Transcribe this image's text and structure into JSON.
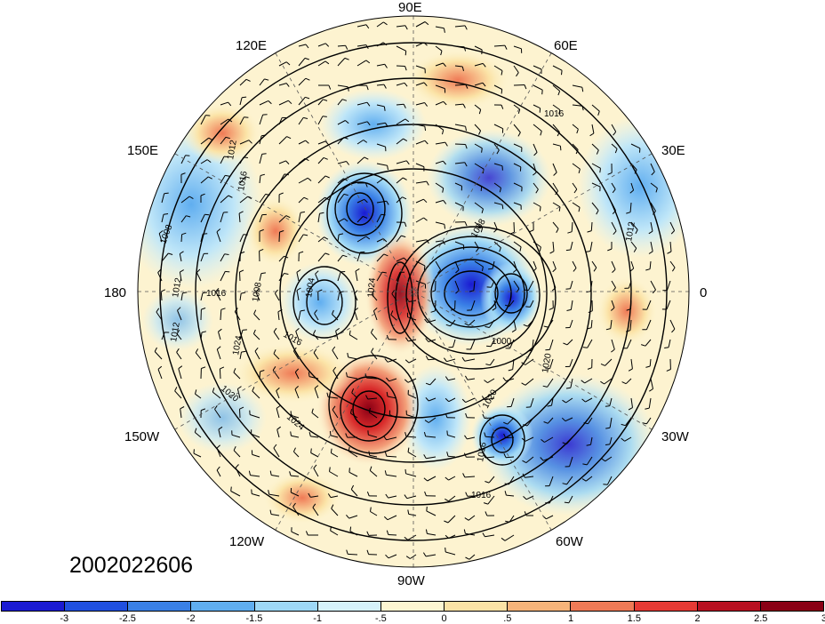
{
  "map": {
    "timestamp": "2002022606",
    "longitude_labels": {
      "e90": "90E",
      "e120": "120E",
      "e60": "60E",
      "e150": "150E",
      "e30": "30E",
      "d180": "180",
      "d0": "0",
      "w150": "150W",
      "w30": "30W",
      "w120": "120W",
      "w60": "60W",
      "w90": "90W"
    },
    "contour_labels": [
      "1016",
      "1012",
      "1016",
      "1008",
      "1016",
      "1008",
      "1012",
      "1024",
      "1024",
      "1004",
      "1012",
      "1016",
      "1020",
      "1020",
      "1024",
      "1016",
      "1020",
      "1000",
      "1008",
      "1012",
      "1016"
    ]
  },
  "colorbar": {
    "colors": [
      "#1a1ad2",
      "#2050e0",
      "#3a80e6",
      "#60aef0",
      "#9ed8f6",
      "#d6f2fa",
      "#fdf6d2",
      "#fbe3a6",
      "#f6b47a",
      "#ef7a56",
      "#e63a34",
      "#b81020",
      "#8a0015"
    ],
    "tick_labels": [
      "-3",
      "-2.5",
      "-2",
      "-1.5",
      "-1",
      "-.5",
      "0",
      ".5",
      "1",
      "1.5",
      "2",
      "2.5",
      "3"
    ]
  }
}
